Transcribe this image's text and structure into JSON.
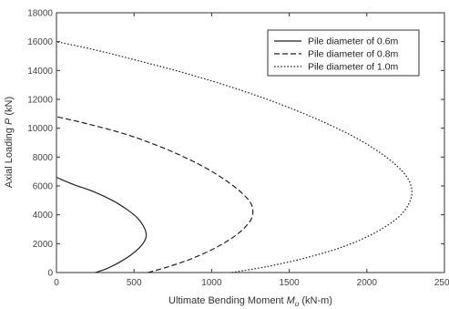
{
  "chart_data": {
    "type": "line",
    "xlabel": {
      "main": "Ultimate Bending Moment ",
      "var": "M",
      "sub": "u",
      "unit": " (kN-m)"
    },
    "ylabel": {
      "main": "Axial Loading ",
      "var": "P",
      "unit": " (kN)"
    },
    "xlim": [
      0,
      2500
    ],
    "ylim": [
      0,
      18000
    ],
    "x_ticks": [
      "0",
      "500",
      "1000",
      "1500",
      "2000",
      "2500"
    ],
    "y_ticks": [
      "0",
      "2000",
      "4000",
      "6000",
      "8000",
      "10000",
      "12000",
      "14000",
      "16000",
      "18000"
    ],
    "grid": false,
    "legend_position": "top-right",
    "series": [
      {
        "name": "Pile diameter of 0.6m",
        "style": "solid",
        "color": "#222222",
        "points": [
          [
            250,
            0
          ],
          [
            330,
            300
          ],
          [
            420,
            800
          ],
          [
            490,
            1300
          ],
          [
            550,
            1900
          ],
          [
            578,
            2500
          ],
          [
            566,
            3100
          ],
          [
            520,
            3800
          ],
          [
            450,
            4400
          ],
          [
            360,
            5000
          ],
          [
            240,
            5600
          ],
          [
            110,
            6100
          ],
          [
            0,
            6600
          ]
        ]
      },
      {
        "name": "Pile diameter of 0.8m",
        "style": "dashed",
        "color": "#222222",
        "points": [
          [
            590,
            0
          ],
          [
            720,
            400
          ],
          [
            880,
            1000
          ],
          [
            1040,
            1800
          ],
          [
            1170,
            2700
          ],
          [
            1250,
            3600
          ],
          [
            1265,
            4300
          ],
          [
            1240,
            5000
          ],
          [
            1140,
            6000
          ],
          [
            970,
            7200
          ],
          [
            740,
            8400
          ],
          [
            470,
            9500
          ],
          [
            200,
            10300
          ],
          [
            0,
            10800
          ]
        ]
      },
      {
        "name": "Pile diameter of 1.0m",
        "style": "dotted",
        "color": "#222222",
        "points": [
          [
            1130,
            0
          ],
          [
            1350,
            400
          ],
          [
            1600,
            1000
          ],
          [
            1850,
            1800
          ],
          [
            2060,
            2800
          ],
          [
            2210,
            3900
          ],
          [
            2280,
            5000
          ],
          [
            2285,
            6000
          ],
          [
            2230,
            7000
          ],
          [
            2100,
            8200
          ],
          [
            1900,
            9500
          ],
          [
            1620,
            10900
          ],
          [
            1280,
            12300
          ],
          [
            900,
            13600
          ],
          [
            520,
            14700
          ],
          [
            220,
            15500
          ],
          [
            0,
            16000
          ]
        ]
      }
    ]
  }
}
